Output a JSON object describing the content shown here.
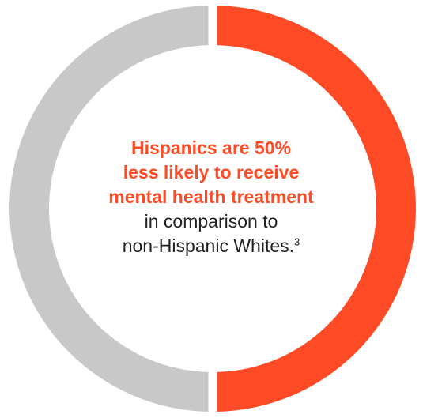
{
  "chart_data": {
    "type": "pie",
    "style": "donut",
    "categories": [
      "",
      ""
    ],
    "values": [
      50,
      50
    ],
    "colors": [
      "#ff4a26",
      "#c8c8c8"
    ]
  },
  "callout": {
    "highlight_lines": [
      "Hispanics are 50%",
      "less likely to receive",
      "mental health treatment"
    ],
    "plain_lines": [
      "in comparison to",
      "non-Hispanic Whites."
    ],
    "footnote": "3"
  }
}
